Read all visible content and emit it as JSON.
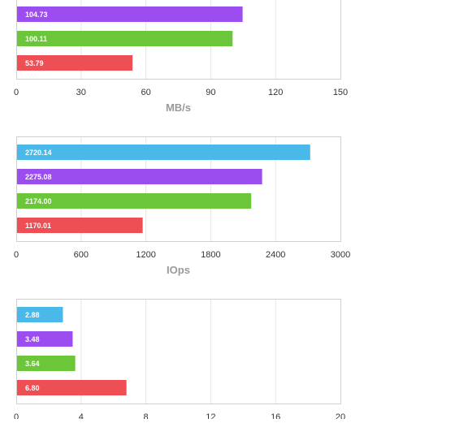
{
  "chart_data": [
    {
      "type": "bar",
      "orientation": "horizontal",
      "xlabel": "MB/s",
      "xlim": [
        0,
        150
      ],
      "ticks": [
        "0",
        "30",
        "60",
        "90",
        "120",
        "150"
      ],
      "grid": true,
      "bars": [
        {
          "value": 104.73,
          "label": "104.73",
          "color": "#9b4df0"
        },
        {
          "value": 100.11,
          "label": "100.11",
          "color": "#6cc63a"
        },
        {
          "value": 53.79,
          "label": "53.79",
          "color": "#ee4f54"
        }
      ]
    },
    {
      "type": "bar",
      "orientation": "horizontal",
      "xlabel": "IOps",
      "xlim": [
        0,
        3000
      ],
      "ticks": [
        "0",
        "600",
        "1200",
        "1800",
        "2400",
        "3000"
      ],
      "grid": true,
      "bars": [
        {
          "value": 2720.14,
          "label": "2720.14",
          "color": "#4bb8ea"
        },
        {
          "value": 2275.08,
          "label": "2275.08",
          "color": "#9b4df0"
        },
        {
          "value": 2174.0,
          "label": "2174.00",
          "color": "#6cc63a"
        },
        {
          "value": 1170.01,
          "label": "1170.01",
          "color": "#ee4f54"
        }
      ]
    },
    {
      "type": "bar",
      "orientation": "horizontal",
      "xlabel": "",
      "xlim": [
        0,
        20
      ],
      "ticks": [
        "0",
        "4",
        "8",
        "12",
        "16",
        "20"
      ],
      "grid": true,
      "bars": [
        {
          "value": 2.88,
          "label": "2.88",
          "color": "#4bb8ea"
        },
        {
          "value": 3.48,
          "label": "3.48",
          "color": "#9b4df0"
        },
        {
          "value": 3.64,
          "label": "3.64",
          "color": "#6cc63a"
        },
        {
          "value": 6.8,
          "label": "6.80",
          "color": "#ee4f54"
        }
      ]
    }
  ]
}
